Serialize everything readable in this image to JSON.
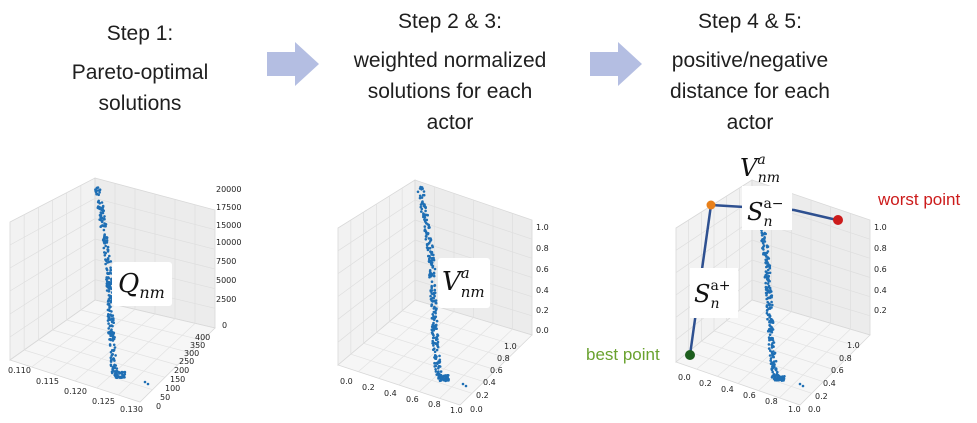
{
  "steps": [
    {
      "num": "Step 1:",
      "desc_lines": [
        "Pareto-optimal",
        "solutions"
      ]
    },
    {
      "num": "Step 2 & 3:",
      "desc_lines": [
        "weighted normalized",
        "solutions for each",
        "actor"
      ]
    },
    {
      "num": "Step 4 & 5:",
      "desc_lines": [
        "positive/negative",
        "distance for each",
        "actor"
      ]
    }
  ],
  "arrow_color": "#b4bee2",
  "point_color": "#1f6fb4",
  "plot1": {
    "label": {
      "base": "Q",
      "sub": "nm"
    },
    "x_ticks": [
      "0.110",
      "0.115",
      "0.120",
      "0.125",
      "0.130"
    ],
    "y_ticks": [
      "0",
      "50",
      "100",
      "150",
      "200",
      "250",
      "300",
      "350",
      "400"
    ],
    "z_ticks": [
      "0",
      "2500",
      "5000",
      "7500",
      "10000",
      "12500",
      "15000",
      "17500",
      "20000"
    ]
  },
  "plot2": {
    "label": {
      "base": "V",
      "sub": "nm",
      "sup": "a"
    },
    "x_ticks": [
      "0.0",
      "0.2",
      "0.4",
      "0.6",
      "0.8",
      "1.0"
    ],
    "y_ticks": [
      "0.0",
      "0.2",
      "0.4",
      "0.6",
      "0.8",
      "1.0"
    ],
    "z_ticks": [
      "0.0",
      "0.2",
      "0.4",
      "0.6",
      "0.8",
      "1.0"
    ]
  },
  "plot3": {
    "label_v": {
      "base": "V",
      "sub": "nm",
      "sup": "a"
    },
    "label_s_minus": {
      "base": "S",
      "sub": "n",
      "sup": "a−"
    },
    "label_s_plus": {
      "base": "S",
      "sub": "n",
      "sup": "a+"
    },
    "best_label": "best point",
    "worst_label": "worst point",
    "best_color": "#1d5e1d",
    "worst_color": "#cc1b1b",
    "v_color": "#e8801a",
    "line_color": "#2e5090",
    "x_ticks": [
      "0.0",
      "0.2",
      "0.4",
      "0.6",
      "0.8",
      "1.0"
    ],
    "y_ticks": [
      "0.0",
      "0.2",
      "0.4",
      "0.6",
      "0.8",
      "1.0"
    ],
    "z_ticks": [
      "0.2",
      "0.4",
      "0.6",
      "0.8",
      "1.0"
    ]
  }
}
